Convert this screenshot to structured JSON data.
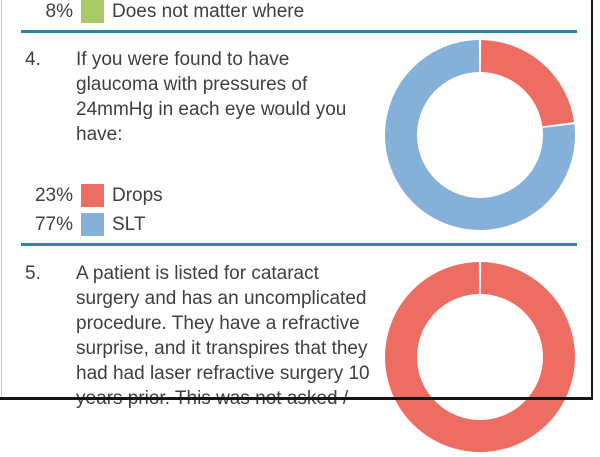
{
  "colors": {
    "text": "#3f3f3f",
    "divider": "#2488a8",
    "frame": "#161616",
    "green": "#a9c964",
    "red": "#ed6d62",
    "blue": "#85b0d8"
  },
  "q3_partial": {
    "legend": [
      {
        "pct": "8%",
        "label": "Does not matter where",
        "color": "#a9c964"
      }
    ]
  },
  "q4": {
    "number": "4.",
    "lines": [
      "If you were found to have",
      "glaucoma with pressures of",
      "24mmHg in each eye would you",
      "have:"
    ],
    "legend": [
      {
        "pct": "23%",
        "label": "Drops",
        "color": "#ed6d62"
      },
      {
        "pct": "77%",
        "label": "SLT",
        "color": "#85b0d8"
      }
    ]
  },
  "q5": {
    "number": "5.",
    "lines": [
      "A patient is listed for cataract",
      "surgery and has an uncomplicated",
      "procedure. They have a refractive",
      "surprise, and it transpires that they",
      "had had laser refractive surgery 10",
      "years prior. This was not asked /"
    ]
  },
  "chart_data": [
    {
      "type": "pie",
      "subtype": "donut",
      "labels": [
        "Drops",
        "SLT"
      ],
      "values": [
        23,
        77
      ],
      "colors": [
        "#ed6d62",
        "#85b0d8"
      ],
      "start_angle": "top",
      "direction": "clockwise"
    },
    {
      "type": "pie",
      "subtype": "donut",
      "labels": [
        ""
      ],
      "values": [
        100
      ],
      "colors": [
        "#ed6d62"
      ],
      "start_angle": "top",
      "direction": "clockwise"
    }
  ]
}
